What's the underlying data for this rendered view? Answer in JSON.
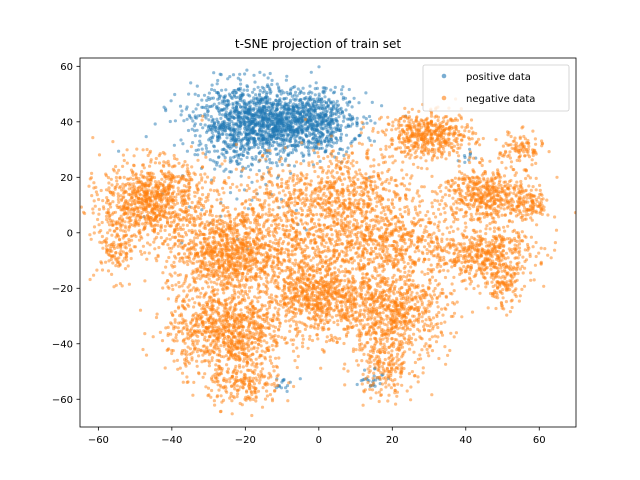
{
  "chart_data": {
    "type": "scatter",
    "title": "t-SNE projection of train set",
    "xlabel": "",
    "ylabel": "",
    "xlim": [
      -65,
      70
    ],
    "ylim": [
      -70,
      63
    ],
    "xticks": [
      -60,
      -40,
      -20,
      0,
      20,
      40,
      60
    ],
    "yticks": [
      -60,
      -40,
      -20,
      0,
      20,
      40,
      60
    ],
    "grid": false,
    "legend_position": "top-right",
    "marker_alpha": 0.5,
    "series": [
      {
        "name": "positive data",
        "color": "#1f77b4",
        "clusters": [
          {
            "cx": -12,
            "cy": 40,
            "sx": 10,
            "sy": 6,
            "n": 1400
          },
          {
            "cx": -22,
            "cy": 38,
            "sx": 6,
            "sy": 8,
            "n": 300
          },
          {
            "cx": 0,
            "cy": 40,
            "sx": 5,
            "sy": 5,
            "n": 250
          },
          {
            "cx": 14,
            "cy": -52,
            "sx": 2,
            "sy": 2,
            "n": 25
          },
          {
            "cx": -10,
            "cy": -55,
            "sx": 1.5,
            "sy": 2,
            "n": 15
          },
          {
            "cx": 40,
            "cy": 28,
            "sx": 1.5,
            "sy": 1.5,
            "n": 10
          },
          {
            "cx": -25,
            "cy": 20,
            "sx": 15,
            "sy": 15,
            "n": 60
          }
        ]
      },
      {
        "name": "negative data",
        "color": "#ff7f0e",
        "clusters": [
          {
            "cx": -45,
            "cy": 12,
            "sx": 7,
            "sy": 7,
            "n": 900
          },
          {
            "cx": -25,
            "cy": -8,
            "sx": 8,
            "sy": 7,
            "n": 900
          },
          {
            "cx": -25,
            "cy": -35,
            "sx": 8,
            "sy": 8,
            "n": 1000
          },
          {
            "cx": 0,
            "cy": -22,
            "sx": 7,
            "sy": 7,
            "n": 800
          },
          {
            "cx": 20,
            "cy": -28,
            "sx": 8,
            "sy": 8,
            "n": 800
          },
          {
            "cx": 30,
            "cy": 35,
            "sx": 6,
            "sy": 4,
            "n": 500
          },
          {
            "cx": 45,
            "cy": 14,
            "sx": 6,
            "sy": 5,
            "n": 500
          },
          {
            "cx": 45,
            "cy": -8,
            "sx": 7,
            "sy": 5,
            "n": 500
          },
          {
            "cx": 20,
            "cy": -3,
            "sx": 9,
            "sy": 6,
            "n": 500
          },
          {
            "cx": 8,
            "cy": 15,
            "sx": 9,
            "sy": 8,
            "n": 500
          },
          {
            "cx": -8,
            "cy": 5,
            "sx": 12,
            "sy": 10,
            "n": 700
          },
          {
            "cx": -20,
            "cy": -55,
            "sx": 5,
            "sy": 4,
            "n": 200
          },
          {
            "cx": 18,
            "cy": -48,
            "sx": 4,
            "sy": 6,
            "n": 200
          },
          {
            "cx": -55,
            "cy": -5,
            "sx": 3,
            "sy": 6,
            "n": 150
          },
          {
            "cx": 57,
            "cy": 10,
            "sx": 3,
            "sy": 3,
            "n": 120
          },
          {
            "cx": 55,
            "cy": 30,
            "sx": 3,
            "sy": 3,
            "n": 100
          },
          {
            "cx": 50,
            "cy": -20,
            "sx": 2,
            "sy": 4,
            "n": 100
          }
        ]
      }
    ],
    "legend": [
      {
        "label": "positive data",
        "color": "#1f77b4"
      },
      {
        "label": "negative data",
        "color": "#ff7f0e"
      }
    ]
  }
}
